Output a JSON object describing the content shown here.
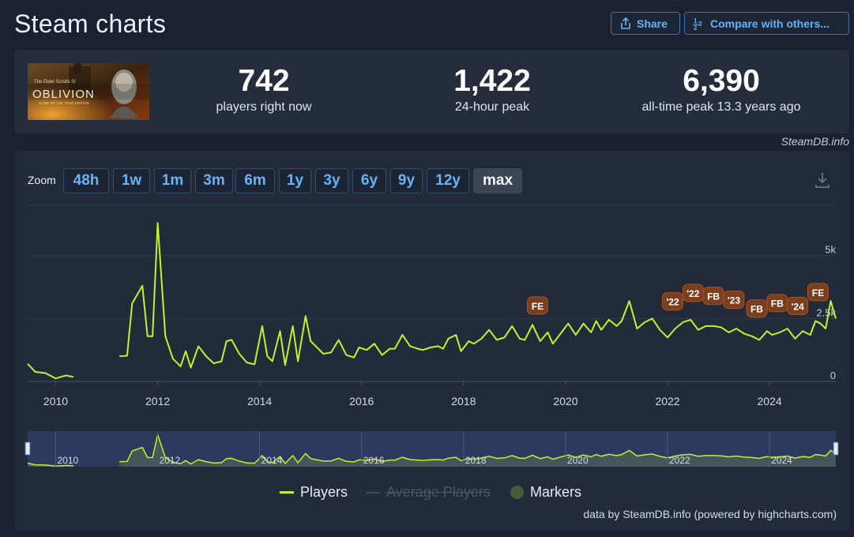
{
  "page": {
    "title": "Steam charts",
    "share_label": "Share",
    "compare_label": "Compare with others..."
  },
  "stats": {
    "current": {
      "value": "742",
      "label": "players right now"
    },
    "peak24": {
      "value": "1,422",
      "label": "24-hour peak"
    },
    "alltime": {
      "value": "6,390",
      "label": "all-time peak 13.3 years ago"
    }
  },
  "game_logo": {
    "title": "OBLIVION",
    "subtitle": "GAME OF THE YEAR EDITION",
    "top_line": "The Elder Scrolls IV"
  },
  "credit": "SteamDB.info",
  "zoom": {
    "label": "Zoom",
    "buttons": [
      "48h",
      "1w",
      "1m",
      "3m",
      "6m",
      "1y",
      "3y",
      "6y",
      "9y",
      "12y",
      "max"
    ],
    "active": "max"
  },
  "legend": {
    "players": "Players",
    "average": "Average Players",
    "markers": "Markers"
  },
  "powered_by": "data by SteamDB.info (powered by highcharts.com)",
  "colors": {
    "players": "#c3f22d",
    "marker": "#7c3f1e",
    "accent": "#66b3f5"
  },
  "chart_data": {
    "type": "line",
    "x_unit": "year",
    "ylim": [
      0,
      7000
    ],
    "y_ticks": [
      0,
      2500,
      5000
    ],
    "y_tick_labels": [
      "0",
      "2.5k",
      "5k"
    ],
    "x_ticks": [
      2010,
      2012,
      2014,
      2016,
      2018,
      2020,
      2022,
      2024
    ],
    "navigator_ticks": [
      "2010",
      "2012",
      "2014",
      "2016",
      "2018",
      "2020",
      "2022",
      "2024"
    ],
    "series": [
      {
        "name": "Players",
        "segments": [
          [
            [
              2009.45,
              700
            ],
            [
              2009.6,
              380
            ],
            [
              2009.8,
              330
            ],
            [
              2010.0,
              120
            ],
            [
              2010.2,
              240
            ],
            [
              2010.35,
              180
            ]
          ],
          [
            [
              2011.25,
              1000
            ],
            [
              2011.4,
              1020
            ],
            [
              2011.5,
              3100
            ],
            [
              2011.7,
              3800
            ],
            [
              2011.8,
              1800
            ],
            [
              2011.9,
              1800
            ],
            [
              2012.0,
              6300
            ],
            [
              2012.15,
              1800
            ],
            [
              2012.3,
              900
            ],
            [
              2012.45,
              600
            ],
            [
              2012.55,
              1200
            ],
            [
              2012.65,
              550
            ],
            [
              2012.8,
              1400
            ],
            [
              2012.95,
              1000
            ],
            [
              2013.1,
              720
            ],
            [
              2013.25,
              800
            ],
            [
              2013.35,
              1600
            ],
            [
              2013.45,
              1650
            ],
            [
              2013.6,
              1100
            ],
            [
              2013.75,
              750
            ],
            [
              2013.9,
              680
            ],
            [
              2014.05,
              2200
            ],
            [
              2014.15,
              1000
            ],
            [
              2014.25,
              800
            ],
            [
              2014.4,
              2000
            ],
            [
              2014.5,
              650
            ],
            [
              2014.65,
              2200
            ],
            [
              2014.75,
              800
            ],
            [
              2014.9,
              2600
            ],
            [
              2015.0,
              1600
            ],
            [
              2015.1,
              1400
            ],
            [
              2015.25,
              1100
            ],
            [
              2015.4,
              1150
            ],
            [
              2015.55,
              1650
            ],
            [
              2015.7,
              1050
            ],
            [
              2015.85,
              950
            ],
            [
              2015.95,
              1350
            ],
            [
              2016.1,
              1250
            ],
            [
              2016.25,
              1500
            ],
            [
              2016.4,
              1050
            ],
            [
              2016.55,
              1300
            ],
            [
              2016.65,
              1300
            ],
            [
              2016.8,
              1850
            ],
            [
              2016.95,
              1400
            ],
            [
              2017.1,
              1300
            ],
            [
              2017.2,
              1250
            ],
            [
              2017.35,
              1350
            ],
            [
              2017.5,
              1400
            ],
            [
              2017.6,
              1300
            ],
            [
              2017.7,
              1700
            ],
            [
              2017.85,
              1850
            ],
            [
              2017.95,
              1200
            ],
            [
              2018.1,
              1600
            ],
            [
              2018.2,
              1500
            ],
            [
              2018.35,
              1700
            ],
            [
              2018.5,
              2050
            ],
            [
              2018.65,
              1650
            ],
            [
              2018.8,
              1750
            ],
            [
              2018.95,
              2200
            ],
            [
              2019.1,
              1700
            ],
            [
              2019.2,
              1650
            ],
            [
              2019.35,
              2250
            ],
            [
              2019.5,
              1600
            ],
            [
              2019.65,
              1950
            ],
            [
              2019.75,
              1500
            ],
            [
              2019.9,
              1900
            ],
            [
              2020.05,
              2300
            ],
            [
              2020.2,
              1850
            ],
            [
              2020.35,
              2300
            ],
            [
              2020.5,
              1950
            ],
            [
              2020.6,
              2400
            ],
            [
              2020.7,
              2050
            ],
            [
              2020.85,
              2450
            ],
            [
              2021.0,
              2200
            ],
            [
              2021.1,
              2400
            ],
            [
              2021.25,
              3200
            ],
            [
              2021.4,
              2100
            ],
            [
              2021.55,
              2350
            ],
            [
              2021.7,
              2500
            ],
            [
              2021.85,
              2050
            ],
            [
              2022.0,
              1750
            ],
            [
              2022.15,
              2100
            ],
            [
              2022.3,
              2350
            ],
            [
              2022.45,
              2450
            ],
            [
              2022.6,
              2050
            ],
            [
              2022.75,
              2200
            ],
            [
              2022.9,
              2200
            ],
            [
              2023.05,
              2150
            ],
            [
              2023.2,
              1950
            ],
            [
              2023.35,
              2100
            ],
            [
              2023.5,
              1900
            ],
            [
              2023.65,
              1800
            ],
            [
              2023.8,
              1650
            ],
            [
              2023.95,
              2000
            ],
            [
              2024.05,
              1850
            ],
            [
              2024.2,
              1950
            ],
            [
              2024.35,
              2100
            ],
            [
              2024.5,
              1700
            ],
            [
              2024.65,
              2000
            ],
            [
              2024.8,
              1850
            ],
            [
              2024.9,
              2400
            ],
            [
              2025.0,
              2300
            ],
            [
              2025.1,
              2100
            ],
            [
              2025.2,
              3200
            ],
            [
              2025.3,
              2500
            ]
          ]
        ]
      }
    ],
    "markers": [
      {
        "label": "FE",
        "x": 2019.45
      },
      {
        "label": "'22",
        "x": 2022.1
      },
      {
        "label": "'22",
        "x": 2022.5
      },
      {
        "label": "FB",
        "x": 2022.9
      },
      {
        "label": "'23",
        "x": 2023.3
      },
      {
        "label": "FB",
        "x": 2023.75
      },
      {
        "label": "FB",
        "x": 2024.15
      },
      {
        "label": "'24",
        "x": 2024.55
      },
      {
        "label": "FE",
        "x": 2024.95
      }
    ]
  }
}
